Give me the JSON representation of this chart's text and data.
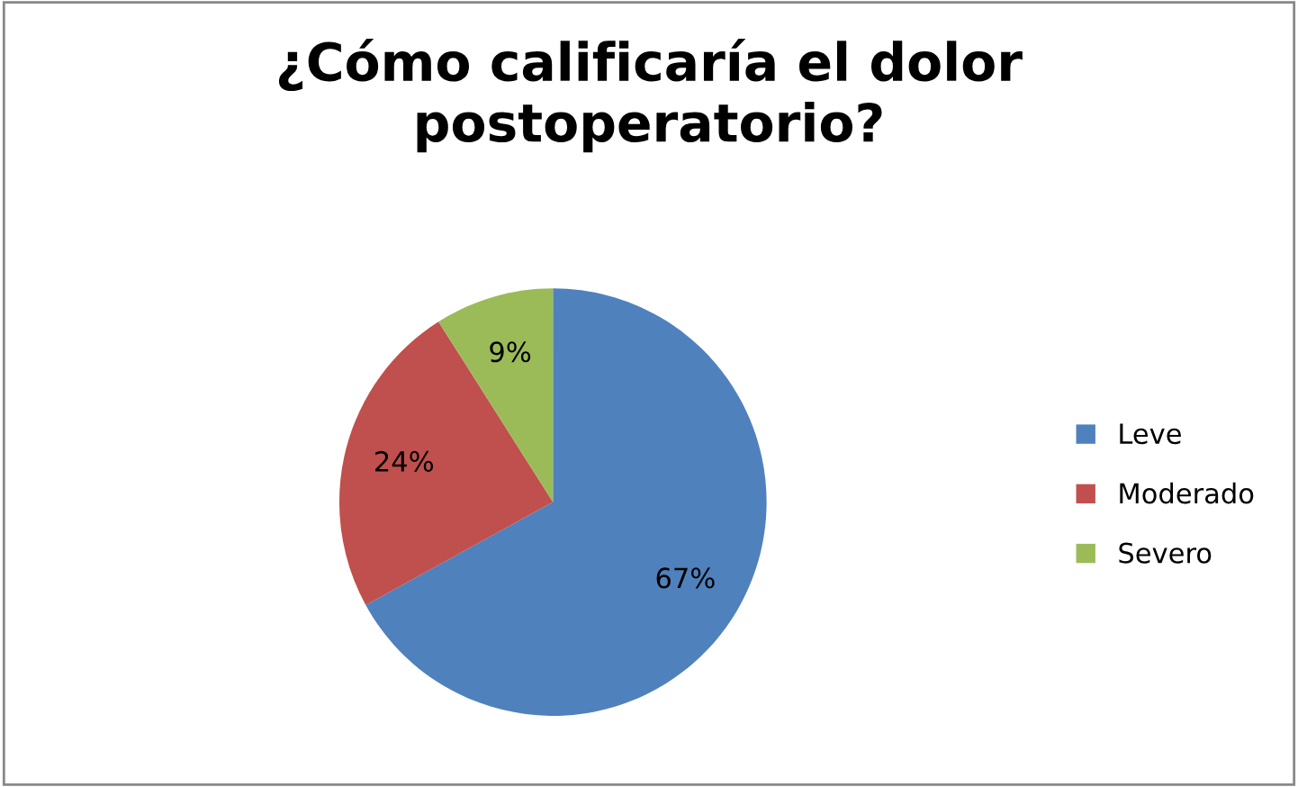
{
  "chart_data": {
    "type": "pie",
    "title": "¿Cómo calificaría el dolor\npostoperatorio?",
    "categories": [
      "Leve",
      "Moderado",
      "Severo"
    ],
    "values": [
      67,
      24,
      9
    ],
    "colors": [
      "#4f81bd",
      "#c0504d",
      "#9bbb59"
    ],
    "value_labels": [
      "67%",
      "24%",
      "9%"
    ],
    "legend": "right"
  }
}
